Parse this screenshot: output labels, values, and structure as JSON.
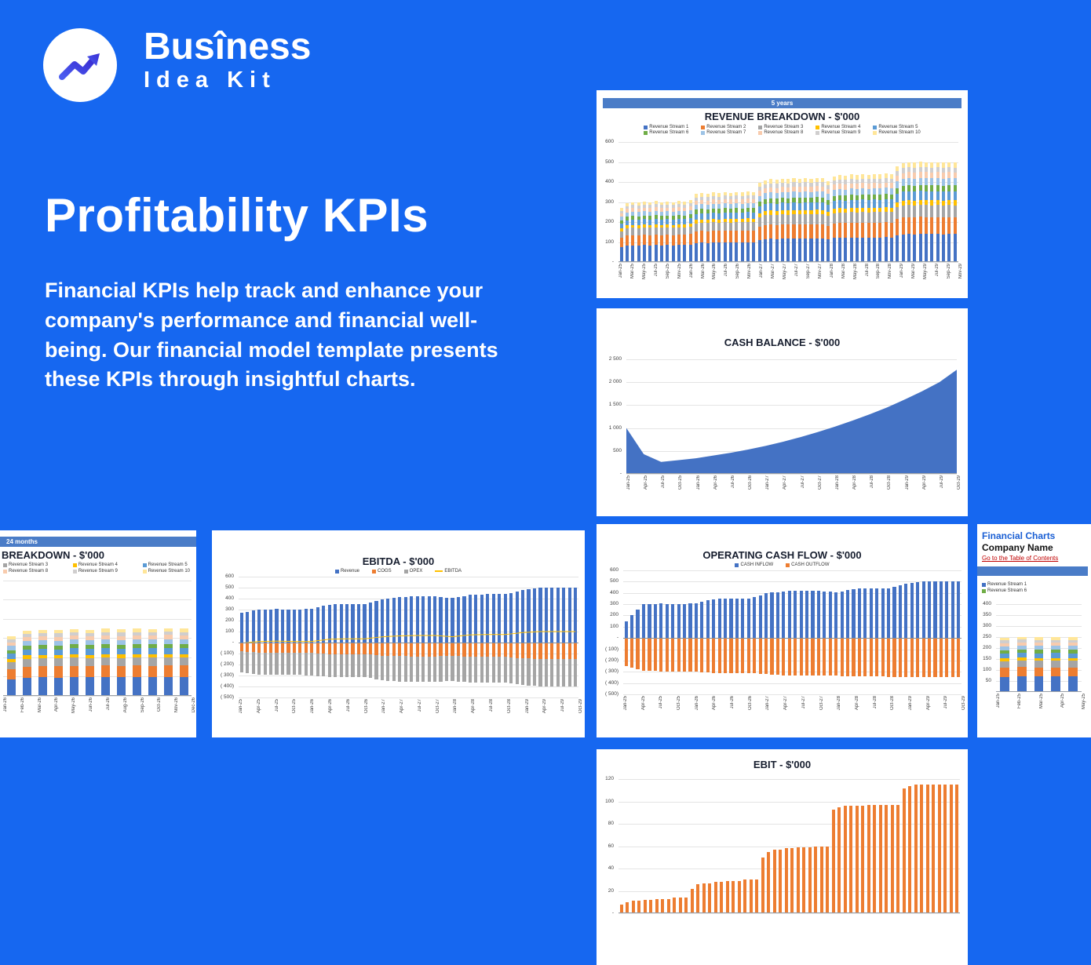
{
  "logo": {
    "line1": "Busîness",
    "line2": "Idea Kit"
  },
  "hero": {
    "title": "Profitability KPIs",
    "body": "Financial KPIs help track and enhance your company's performance and financial well-being. Our financial model template presents these KPIs through insightful charts."
  },
  "nav_card": {
    "heading": "Financial Charts",
    "company": "Company Name",
    "link": "Go to the Table of Contents"
  },
  "chart_data": [
    {
      "id": "c1",
      "type": "stacked-bar",
      "header": "5 years",
      "title": "REVENUE BREAKDOWN - $'000",
      "legend": [
        {
          "label": "Revenue Stream 1",
          "color": "#4472C4"
        },
        {
          "label": "Revenue Stream 2",
          "color": "#ED7D31"
        },
        {
          "label": "Revenue Stream 3",
          "color": "#A5A5A5"
        },
        {
          "label": "Revenue Stream 4",
          "color": "#FFC000"
        },
        {
          "label": "Revenue Stream 5",
          "color": "#5B9BD5"
        },
        {
          "label": "Revenue Stream 6",
          "color": "#70AD47"
        },
        {
          "label": "Revenue Stream 7",
          "color": "#9DC3E6"
        },
        {
          "label": "Revenue Stream 8",
          "color": "#F8CBAD"
        },
        {
          "label": "Revenue Stream 9",
          "color": "#D0CECE"
        },
        {
          "label": "Revenue Stream 10",
          "color": "#FFE699"
        }
      ],
      "colors": [
        "#4472C4",
        "#ED7D31",
        "#A5A5A5",
        "#FFC000",
        "#5B9BD5",
        "#70AD47",
        "#9DC3E6",
        "#F8CBAD",
        "#D0CECE",
        "#FFE699"
      ],
      "fractions": [
        0.28,
        0.17,
        0.12,
        0.05,
        0.09,
        0.06,
        0.07,
        0.06,
        0.05,
        0.05
      ],
      "ylim": [
        0,
        620
      ],
      "yticks": [
        600,
        500,
        400,
        300,
        200,
        100,
        0
      ],
      "ylabels": [
        "600",
        "500",
        "400",
        "300",
        "200",
        "100",
        "-"
      ],
      "xticks": [
        "Jan-25",
        "Mar-25",
        "May-25",
        "Jul-25",
        "Sep-25",
        "Nov-25",
        "Jan-26",
        "Mar-26",
        "May-26",
        "Jul-26",
        "Sep-26",
        "Nov-26",
        "Jan-27",
        "Mar-27",
        "May-27",
        "Jul-27",
        "Sep-27",
        "Nov-27",
        "Jan-28",
        "Mar-28",
        "May-28",
        "Jul-28",
        "Sep-28",
        "Nov-28",
        "Jan-29",
        "Mar-29",
        "May-29",
        "Jul-29",
        "Sep-29",
        "Nov-29"
      ],
      "totals": [
        270,
        295,
        300,
        298,
        302,
        300,
        305,
        300,
        303,
        300,
        305,
        302,
        310,
        340,
        345,
        342,
        348,
        345,
        350,
        347,
        350,
        348,
        352,
        350,
        395,
        410,
        415,
        412,
        418,
        415,
        420,
        417,
        420,
        418,
        422,
        420,
        405,
        430,
        435,
        432,
        438,
        435,
        440,
        437,
        440,
        438,
        442,
        440,
        480,
        495,
        500,
        497,
        502,
        500,
        498,
        500,
        497,
        500,
        498
      ],
      "pad": [
        26,
        10,
        2,
        40
      ]
    },
    {
      "id": "c2",
      "type": "area",
      "title": "CASH BALANCE - $'000",
      "color": "#4472C4",
      "ylim": [
        0,
        2600
      ],
      "yticks": [
        2500,
        2000,
        1500,
        1000,
        500,
        0
      ],
      "ylabels": [
        "2 500",
        "2 000",
        "1 500",
        "1 000",
        "500",
        "-"
      ],
      "xticks": [
        "Jan-25",
        "Apr-25",
        "Jul-25",
        "Oct-25",
        "Jan-26",
        "Apr-26",
        "Jul-26",
        "Oct-26",
        "Jan-27",
        "Apr-27",
        "Jul-27",
        "Oct-27",
        "Jan-28",
        "Apr-28",
        "Jul-28",
        "Oct-28",
        "Jan-29",
        "Apr-29",
        "Jul-29",
        "Oct-29"
      ],
      "values": [
        1000,
        430,
        260,
        300,
        340,
        400,
        460,
        530,
        610,
        700,
        800,
        910,
        1030,
        1160,
        1300,
        1450,
        1620,
        1800,
        2000,
        2270
      ],
      "pad": [
        36,
        12,
        4,
        46
      ]
    },
    {
      "id": "c3",
      "type": "stacked-bar",
      "header": "24 months",
      "title": "BREAKDOWN - $'000",
      "legend": [
        {
          "label": "Revenue Stream 3",
          "color": "#A5A5A5"
        },
        {
          "label": "Revenue Stream 4",
          "color": "#FFC000"
        },
        {
          "label": "Revenue Stream 5",
          "color": "#5B9BD5"
        },
        {
          "label": "Revenue Stream 8",
          "color": "#F8CBAD"
        },
        {
          "label": "Revenue Stream 9",
          "color": "#D0CECE"
        },
        {
          "label": "Revenue Stream 10",
          "color": "#FFE699"
        }
      ],
      "colors": [
        "#4472C4",
        "#ED7D31",
        "#A5A5A5",
        "#FFC000",
        "#5B9BD5",
        "#70AD47",
        "#9DC3E6",
        "#F8CBAD",
        "#D0CECE",
        "#FFE699"
      ],
      "fractions": [
        0.28,
        0.17,
        0.12,
        0.05,
        0.09,
        0.06,
        0.07,
        0.06,
        0.05,
        0.05
      ],
      "ylim": [
        0,
        620
      ],
      "yticks": [
        600,
        500,
        400,
        300,
        200,
        100,
        0
      ],
      "ylabels": [
        "",
        "",
        "",
        "",
        "",
        "",
        ""
      ],
      "xticks": [
        "Jan-26",
        "Feb-26",
        "Mar-26",
        "Apr-26",
        "May-26",
        "Jun-26",
        "Jul-26",
        "Aug-26",
        "Sep-26",
        "Oct-26",
        "Nov-26",
        "Dec-26"
      ],
      "totals": [
        310,
        340,
        345,
        342,
        348,
        345,
        350,
        347,
        350,
        348,
        352,
        350
      ],
      "pad": [
        4,
        6,
        2,
        38
      ]
    },
    {
      "id": "c4",
      "type": "posneg",
      "title": "EBITDA - $'000",
      "legend": [
        {
          "label": "Revenue",
          "color": "#4472C4"
        },
        {
          "label": "COGS",
          "color": "#ED7D31"
        },
        {
          "label": "OPEX",
          "color": "#A5A5A5"
        },
        {
          "label": "EBITDA",
          "color": "#FFC000",
          "marker": "line"
        }
      ],
      "ylim": [
        -500,
        600
      ],
      "yticks": [
        600,
        500,
        400,
        300,
        200,
        100,
        0,
        -100,
        -200,
        -300,
        -400,
        -500
      ],
      "ylabels": [
        "600",
        "500",
        "400",
        "300",
        "200",
        "100",
        "-",
        "( 100)",
        "( 200)",
        "( 300)",
        "( 400)",
        "( 500)"
      ],
      "xticks": [
        "Jan-25",
        "Apr-25",
        "Jul-25",
        "Oct-25",
        "Jan-26",
        "Apr-26",
        "Jul-26",
        "Oct-26",
        "Jan-27",
        "Apr-27",
        "Jul-27",
        "Oct-27",
        "Jan-28",
        "Apr-28",
        "Jul-28",
        "Oct-28",
        "Jan-29",
        "Apr-29",
        "Jul-29",
        "Oct-29"
      ],
      "bars": 58,
      "series": [
        {
          "name": "Revenue",
          "color": "#4472C4",
          "values": [
            270,
            300,
            305,
            300,
            310,
            345,
            350,
            350,
            395,
            415,
            420,
            420,
            405,
            435,
            440,
            440,
            480,
            500,
            500,
            500
          ]
        },
        {
          "name": "COGS",
          "color": "#ED7D31",
          "values": [
            -80,
            -90,
            -92,
            -90,
            -95,
            -105,
            -106,
            -106,
            -118,
            -124,
            -126,
            -126,
            -122,
            -130,
            -132,
            -132,
            -144,
            -150,
            -150,
            -150
          ]
        },
        {
          "name": "OPEX",
          "color": "#A5A5A5",
          "values": [
            -195,
            -200,
            -200,
            -200,
            -205,
            -210,
            -210,
            -210,
            -225,
            -230,
            -230,
            -230,
            -230,
            -235,
            -235,
            -235,
            -245,
            -250,
            -250,
            -250
          ]
        },
        {
          "name": "EBITDA",
          "color": "#FFC000",
          "line": true,
          "values": [
            -5,
            10,
            13,
            10,
            10,
            30,
            34,
            34,
            52,
            61,
            64,
            64,
            53,
            70,
            73,
            73,
            91,
            100,
            100,
            100
          ]
        }
      ],
      "pad": [
        34,
        8,
        2,
        40
      ]
    },
    {
      "id": "c5",
      "type": "posneg",
      "title": "OPERATING CASH FLOW - $'000",
      "legend": [
        {
          "label": "CASH INFLOW",
          "color": "#4472C4"
        },
        {
          "label": "CASH OUTFLOW",
          "color": "#ED7D31"
        }
      ],
      "ylim": [
        -500,
        600
      ],
      "yticks": [
        600,
        500,
        400,
        300,
        200,
        100,
        0,
        -100,
        -200,
        -300,
        -400,
        -500
      ],
      "ylabels": [
        "600",
        "500",
        "400",
        "300",
        "200",
        "100",
        "-",
        "( 100)",
        "( 200)",
        "( 300)",
        "( 400)",
        "( 500)"
      ],
      "xticks": [
        "Jan-25",
        "Apr-25",
        "Jul-25",
        "Oct-25",
        "Jan-26",
        "Apr-26",
        "Jul-26",
        "Oct-26",
        "Jan-27",
        "Apr-27",
        "Jul-27",
        "Oct-27",
        "Jan-28",
        "Apr-28",
        "Jul-28",
        "Oct-28",
        "Jan-29",
        "Apr-29",
        "Jul-29",
        "Oct-29"
      ],
      "bars": 58,
      "series": [
        {
          "name": "CASH INFLOW",
          "color": "#4472C4",
          "values": [
            150,
            300,
            305,
            300,
            310,
            345,
            350,
            350,
            395,
            415,
            420,
            420,
            405,
            435,
            440,
            440,
            480,
            500,
            500,
            500
          ]
        },
        {
          "name": "CASH OUTFLOW",
          "color": "#ED7D31",
          "values": [
            -250,
            -290,
            -295,
            -295,
            -300,
            -310,
            -310,
            -310,
            -320,
            -330,
            -330,
            -330,
            -335,
            -340,
            -340,
            -345,
            -350,
            -350,
            -350,
            -350
          ]
        }
      ],
      "pad": [
        34,
        8,
        2,
        40
      ]
    },
    {
      "id": "c6",
      "type": "stacked-bar",
      "header": "",
      "title": "",
      "legend": [
        {
          "label": "Revenue Stream 1",
          "color": "#4472C4"
        },
        {
          "label": "Revenue Stream 6",
          "color": "#70AD47"
        }
      ],
      "colors": [
        "#4472C4",
        "#ED7D31",
        "#A5A5A5",
        "#FFC000",
        "#5B9BD5",
        "#70AD47",
        "#9DC3E6",
        "#F8CBAD",
        "#D0CECE",
        "#FFE699"
      ],
      "fractions": [
        0.28,
        0.17,
        0.12,
        0.05,
        0.09,
        0.06,
        0.07,
        0.06,
        0.05,
        0.05
      ],
      "ylim": [
        0,
        430
      ],
      "yticks": [
        400,
        350,
        300,
        250,
        200,
        150,
        100,
        50
      ],
      "ylabels": [
        "400",
        "350",
        "300",
        "250",
        "200",
        "150",
        "100",
        "50"
      ],
      "xticks": [
        "Jan-25",
        "Feb-25",
        "Mar-25",
        "Apr-25",
        "May-25"
      ],
      "totals": [
        248,
        252,
        250,
        251,
        250
      ],
      "pad": [
        24,
        4,
        2,
        30
      ]
    },
    {
      "id": "c7",
      "type": "bar",
      "title": "EBIT - $'000",
      "color": "#ED7D31",
      "ylim": [
        0,
        125
      ],
      "yticks": [
        120,
        100,
        80,
        60,
        40,
        20,
        0
      ],
      "ylabels": [
        "120",
        "100",
        "80",
        "60",
        "40",
        "20",
        "-"
      ],
      "xticks": [],
      "values": [
        8,
        10,
        11,
        11,
        12,
        12,
        13,
        13,
        13,
        14,
        14,
        14,
        22,
        26,
        27,
        27,
        28,
        28,
        29,
        29,
        29,
        30,
        30,
        30,
        50,
        55,
        57,
        57,
        58,
        58,
        59,
        59,
        59,
        60,
        60,
        60,
        93,
        95,
        96,
        96,
        96,
        96,
        97,
        97,
        97,
        97,
        97,
        97,
        112,
        114,
        115,
        115,
        115,
        115,
        115,
        115,
        115,
        115
      ],
      "pad": [
        28,
        10,
        2,
        40
      ]
    }
  ]
}
